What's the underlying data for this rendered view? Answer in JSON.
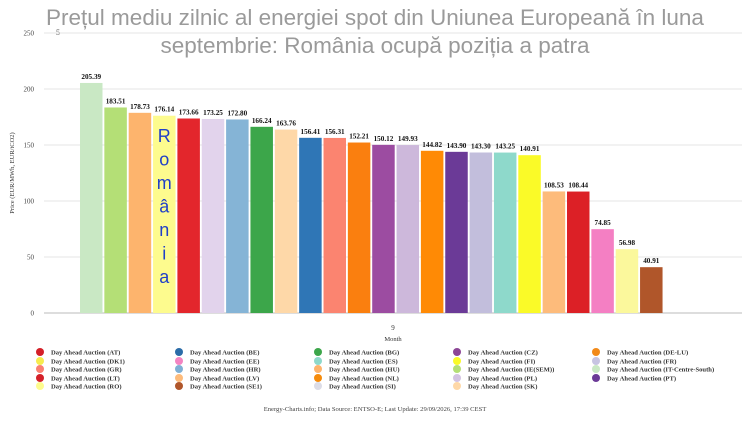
{
  "title": {
    "line1": "Prețul mediu zilnic al energiei spot din Uniunea Europeană în luna",
    "line2": "septembrie: România ocupă poziția a patra"
  },
  "small_mark": "5",
  "annotation": [
    "R",
    "o",
    "m",
    "â",
    "n",
    "i",
    "a"
  ],
  "annotation_color": "#2040c8",
  "footer": "Energy-Charts.info; Data Source: ENTSO-E; Last Update: 29/09/2026, 17:39 CEST",
  "chart_data": {
    "type": "bar",
    "ylabel": "Price (EUR/MWh, EUR/tCO2)",
    "xlabel": "Month",
    "x_tick": "9",
    "ylim": [
      0,
      250
    ],
    "yticks": [
      0,
      50,
      100,
      150,
      200,
      250
    ],
    "grid": true,
    "legend_position": "bottom",
    "bars": [
      {
        "value": 205.39,
        "label": "205.39",
        "color": "#c9e8c4"
      },
      {
        "value": 183.51,
        "label": "183.51",
        "color": "#b4df76"
      },
      {
        "value": 178.73,
        "label": "178.73",
        "color": "#fdb46d"
      },
      {
        "value": 176.14,
        "label": "176.14",
        "color": "#fdfb8e"
      },
      {
        "value": 173.66,
        "label": "173.66",
        "color": "#e3262c"
      },
      {
        "value": 173.25,
        "label": "173.25",
        "color": "#e2d3ec"
      },
      {
        "value": 172.8,
        "label": "172.80",
        "color": "#85b4d6"
      },
      {
        "value": 166.24,
        "label": "166.24",
        "color": "#3ca64a"
      },
      {
        "value": 163.76,
        "label": "163.76",
        "color": "#fed8a8"
      },
      {
        "value": 156.41,
        "label": "156.41",
        "color": "#2f76b6"
      },
      {
        "value": 156.31,
        "label": "156.31",
        "color": "#fb8470"
      },
      {
        "value": 152.21,
        "label": "152.21",
        "color": "#fa7f0f"
      },
      {
        "value": 150.12,
        "label": "150.12",
        "color": "#9c4ca1"
      },
      {
        "value": 149.93,
        "label": "149.93",
        "color": "#cdb8db"
      },
      {
        "value": 144.82,
        "label": "144.82",
        "color": "#ff8a05"
      },
      {
        "value": 143.9,
        "label": "143.90",
        "color": "#6b3a97"
      },
      {
        "value": 143.3,
        "label": "143.30",
        "color": "#c2bedc"
      },
      {
        "value": 143.25,
        "label": "143.25",
        "color": "#8ed9cb"
      },
      {
        "value": 140.91,
        "label": "140.91",
        "color": "#fafa28"
      },
      {
        "value": 108.53,
        "label": "108.53",
        "color": "#fdbb7b"
      },
      {
        "value": 108.44,
        "label": "108.44",
        "color": "#dc2026"
      },
      {
        "value": 74.85,
        "label": "74.85",
        "color": "#f47fc3"
      },
      {
        "value": 56.98,
        "label": "56.98",
        "color": "#fbf89c"
      },
      {
        "value": 40.91,
        "label": "40.91",
        "color": "#b0562a"
      }
    ],
    "legend": [
      {
        "name": "Day Ahead Auction (AT)",
        "color": "#d42028"
      },
      {
        "name": "Day Ahead Auction (BE)",
        "color": "#2b6ca8"
      },
      {
        "name": "Day Ahead Auction (BG)",
        "color": "#3ca64a"
      },
      {
        "name": "Day Ahead Auction (CZ)",
        "color": "#8c4696"
      },
      {
        "name": "Day Ahead Auction (DE-LU)",
        "color": "#f28a1a"
      },
      {
        "name": "Day Ahead Auction (DK1)",
        "color": "#f6ec4e"
      },
      {
        "name": "Day Ahead Auction (EE)",
        "color": "#f384c2"
      },
      {
        "name": "Day Ahead Auction (ES)",
        "color": "#8ed9cb"
      },
      {
        "name": "Day Ahead Auction (FI)",
        "color": "#fafa28"
      },
      {
        "name": "Day Ahead Auction (FR)",
        "color": "#c7c4e2"
      },
      {
        "name": "Day Ahead Auction (GR)",
        "color": "#fa8072"
      },
      {
        "name": "Day Ahead Auction (HR)",
        "color": "#7fafd4"
      },
      {
        "name": "Day Ahead Auction (HU)",
        "color": "#fdb46d"
      },
      {
        "name": "Day Ahead Auction (IE(SEM))",
        "color": "#b4df76"
      },
      {
        "name": "Day Ahead Auction (IT-Centre-South)",
        "color": "#c9e8c4"
      },
      {
        "name": "Day Ahead Auction (LT)",
        "color": "#d42028"
      },
      {
        "name": "Day Ahead Auction (LV)",
        "color": "#fdbb7b"
      },
      {
        "name": "Day Ahead Auction (NL)",
        "color": "#f58b0b"
      },
      {
        "name": "Day Ahead Auction (PL)",
        "color": "#d3c3e2"
      },
      {
        "name": "Day Ahead Auction (PT)",
        "color": "#6b3a97"
      },
      {
        "name": "Day Ahead Auction (RO)",
        "color": "#fdfb8e"
      },
      {
        "name": "Day Ahead Auction (SE1)",
        "color": "#b0562a"
      },
      {
        "name": "Day Ahead Auction (SI)",
        "color": "#dcdce6"
      },
      {
        "name": "Day Ahead Auction (SK)",
        "color": "#fed8a8"
      }
    ]
  }
}
